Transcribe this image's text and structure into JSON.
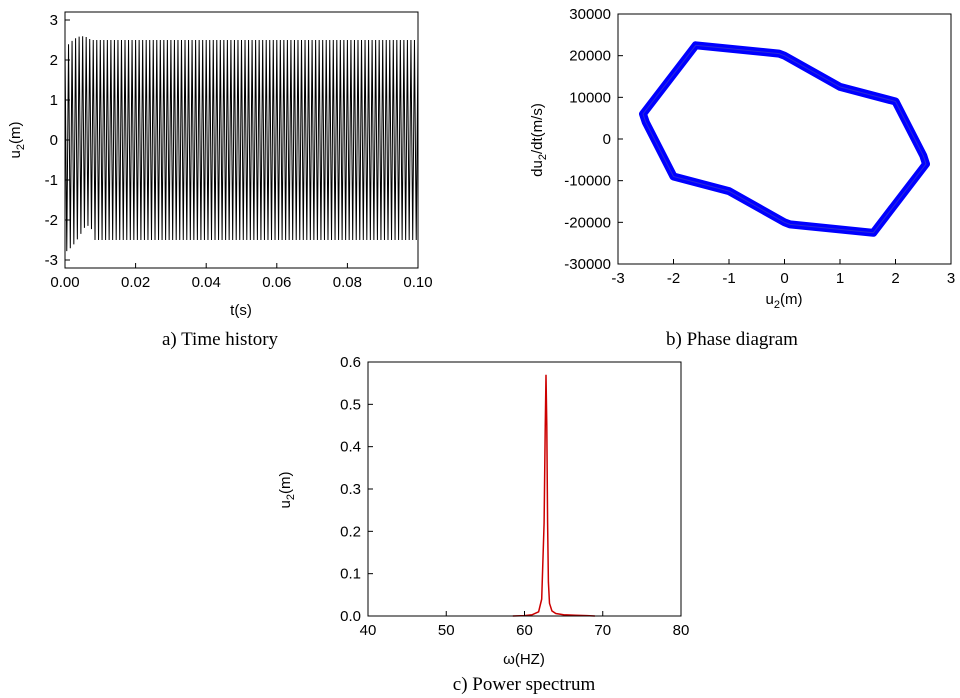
{
  "chart_data": [
    {
      "id": "time-history",
      "type": "line",
      "caption": "a) Time history",
      "xlabel": "t(s)",
      "ylabel_main": "u",
      "ylabel_sub": "2",
      "ylabel_tail": "(m)",
      "xlim": [
        0.0,
        0.1
      ],
      "ylim": [
        -3.2,
        3.2
      ],
      "xticks": [
        0.0,
        0.02,
        0.04,
        0.06,
        0.08,
        0.1
      ],
      "xtick_labels": [
        "0.00",
        "0.02",
        "0.04",
        "0.06",
        "0.08",
        "0.10"
      ],
      "yticks": [
        -3,
        -2,
        -1,
        0,
        1,
        2,
        3
      ],
      "ytick_labels": [
        "-3",
        "-2",
        "-1",
        "0",
        "1",
        "2",
        "3"
      ],
      "series": [
        {
          "color": "#000000",
          "frequency_hz": 1000,
          "steady_amplitude": 2.5,
          "peak_amplitude": 2.8,
          "x_end": 0.1
        }
      ]
    },
    {
      "id": "phase-diagram",
      "type": "line",
      "caption": "b) Phase diagram",
      "xlabel_main": "u",
      "xlabel_sub": "2",
      "xlabel_tail": "(m)",
      "ylabel_main": "du",
      "ylabel_sub": "2",
      "ylabel_tail": "/dt(m/s)",
      "xlim": [
        -3,
        3
      ],
      "ylim": [
        -30000,
        30000
      ],
      "xticks": [
        -3,
        -2,
        -1,
        0,
        1,
        2,
        3
      ],
      "xtick_labels": [
        "-3",
        "-2",
        "-1",
        "0",
        "1",
        "2",
        "3"
      ],
      "yticks": [
        -30000,
        -20000,
        -10000,
        0,
        10000,
        20000,
        30000
      ],
      "ytick_labels": [
        "-30000",
        "-20000",
        "-10000",
        "0",
        "10000",
        "20000",
        "30000"
      ],
      "series": [
        {
          "color": "#0000ff",
          "x": [
            -1.6,
            -0.1,
            0.0,
            1.0,
            2.0,
            2.5,
            2.55,
            1.6,
            0.1,
            0.0,
            -1.0,
            -2.0,
            -2.5,
            -2.55
          ],
          "y": [
            22500,
            20500,
            20000,
            12500,
            9000,
            -4000,
            -6000,
            -22500,
            -20500,
            -20000,
            -12500,
            -9000,
            4000,
            6000
          ]
        }
      ]
    },
    {
      "id": "power-spectrum",
      "type": "line",
      "caption": "c) Power spectrum",
      "xlabel": "ω(HZ)",
      "ylabel_main": "u",
      "ylabel_sub": "2",
      "ylabel_tail": "(m)",
      "xlim": [
        40,
        80
      ],
      "ylim": [
        0.0,
        0.6
      ],
      "xticks": [
        40,
        50,
        60,
        70,
        80
      ],
      "xtick_labels": [
        "40",
        "50",
        "60",
        "70",
        "80"
      ],
      "yticks": [
        0.0,
        0.1,
        0.2,
        0.3,
        0.4,
        0.5,
        0.6
      ],
      "ytick_labels": [
        "0.0",
        "0.1",
        "0.2",
        "0.3",
        "0.4",
        "0.5",
        "0.6"
      ],
      "series": [
        {
          "color": "#cc0000",
          "x": [
            58.5,
            60.0,
            61.0,
            61.8,
            62.2,
            62.5,
            62.65,
            62.75,
            62.85,
            62.95,
            63.05,
            63.2,
            63.5,
            64.0,
            65.0,
            66.5,
            68.0,
            69.0
          ],
          "y": [
            0.0,
            0.001,
            0.003,
            0.01,
            0.04,
            0.22,
            0.44,
            0.57,
            0.45,
            0.22,
            0.08,
            0.03,
            0.012,
            0.006,
            0.003,
            0.002,
            0.001,
            0.0
          ]
        }
      ]
    }
  ]
}
